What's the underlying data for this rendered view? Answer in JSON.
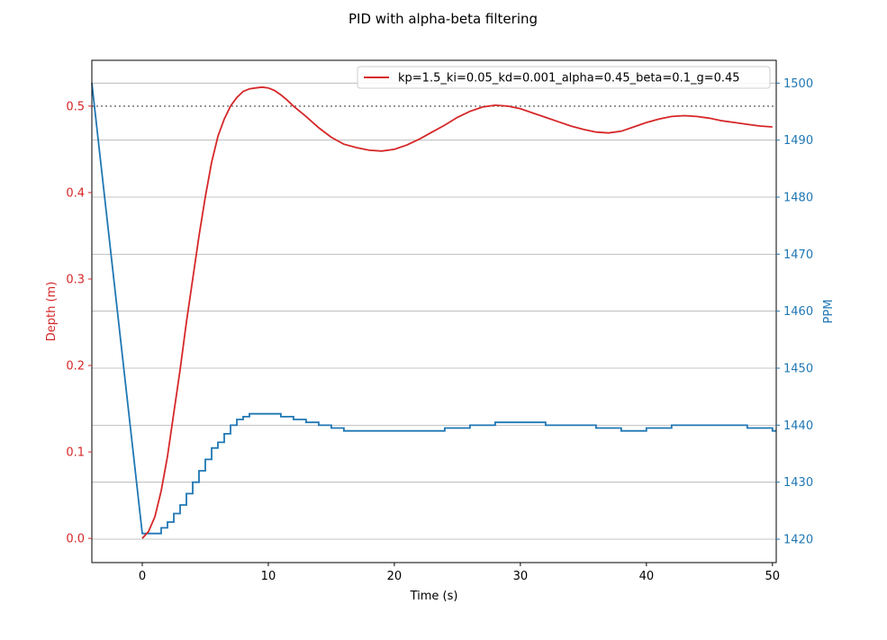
{
  "chart_data": {
    "type": "line",
    "title": "PID with alpha-beta filtering",
    "xlabel": "Time (s)",
    "ylabel_left": "Depth (m)",
    "ylabel_right": "PPM",
    "xlim": [
      -4,
      50.3
    ],
    "ylim_left": [
      -0.028,
      0.553
    ],
    "ylim_right": [
      1415.9,
      1504.0
    ],
    "x_ticks": [
      "0",
      "10",
      "20",
      "30",
      "40",
      "50"
    ],
    "y_ticks_left": [
      "0.0",
      "0.1",
      "0.2",
      "0.3",
      "0.4",
      "0.5"
    ],
    "y_ticks_right": [
      "1420",
      "1430",
      "1440",
      "1450",
      "1460",
      "1470",
      "1480",
      "1490",
      "1500"
    ],
    "grid": "right-axis horizontal",
    "legend_position": "top-right",
    "setpoint": 0.5,
    "colors": {
      "depth": "#d62728",
      "ppm": "#1f77b4",
      "setpoint": "#808080"
    },
    "series": [
      {
        "name": "kp=1.5_ki=0.05_kd=0.001_alpha=0.45_beta=0.1_g=0.45",
        "axis": "left",
        "color": "#d62728",
        "x": [
          0,
          0.5,
          1,
          1.5,
          2,
          2.5,
          3,
          3.5,
          4,
          4.5,
          5,
          5.5,
          6,
          6.5,
          7,
          7.5,
          8,
          8.5,
          9,
          9.5,
          10,
          10.5,
          11,
          11.5,
          12,
          13,
          14,
          15,
          16,
          17,
          18,
          19,
          20,
          21,
          22,
          23,
          24,
          25,
          26,
          27,
          28,
          29,
          30,
          31,
          32,
          33,
          34,
          35,
          36,
          37,
          38,
          39,
          40,
          41,
          42,
          43,
          44,
          45,
          46,
          47,
          48,
          49,
          50
        ],
        "y": [
          0.0,
          0.008,
          0.025,
          0.055,
          0.095,
          0.145,
          0.195,
          0.25,
          0.3,
          0.35,
          0.395,
          0.435,
          0.465,
          0.485,
          0.5,
          0.51,
          0.517,
          0.52,
          0.521,
          0.522,
          0.521,
          0.518,
          0.513,
          0.507,
          0.5,
          0.488,
          0.475,
          0.464,
          0.456,
          0.452,
          0.449,
          0.448,
          0.45,
          0.455,
          0.462,
          0.47,
          0.478,
          0.487,
          0.494,
          0.499,
          0.501,
          0.5,
          0.497,
          0.492,
          0.487,
          0.482,
          0.477,
          0.473,
          0.47,
          0.469,
          0.471,
          0.476,
          0.481,
          0.485,
          0.488,
          0.489,
          0.488,
          0.486,
          0.483,
          0.481,
          0.479,
          0.477,
          0.476
        ]
      },
      {
        "name": "PPM",
        "axis": "right",
        "color": "#1f77b4",
        "x": [
          -4,
          0,
          0.5,
          1,
          1.5,
          2,
          2.5,
          3,
          3.5,
          4,
          4.5,
          5,
          5.5,
          6,
          6.5,
          7,
          7.5,
          8,
          8.5,
          9,
          10,
          11,
          12,
          13,
          14,
          15,
          16,
          18,
          20,
          22,
          24,
          26,
          28,
          30,
          32,
          34,
          36,
          38,
          40,
          42,
          44,
          46,
          48,
          50,
          50.3
        ],
        "y": [
          1500,
          1421,
          1421,
          1421,
          1422,
          1423,
          1424.5,
          1426,
          1428,
          1430,
          1432,
          1434,
          1436,
          1437,
          1438.5,
          1440,
          1441,
          1441.5,
          1442,
          1442,
          1442,
          1441.5,
          1441,
          1440.5,
          1440,
          1439.5,
          1439,
          1439,
          1439,
          1439,
          1439.5,
          1440,
          1440.5,
          1440.5,
          1440,
          1440,
          1439.5,
          1439,
          1439.5,
          1440,
          1440,
          1440,
          1439.5,
          1439,
          1439
        ]
      }
    ]
  }
}
